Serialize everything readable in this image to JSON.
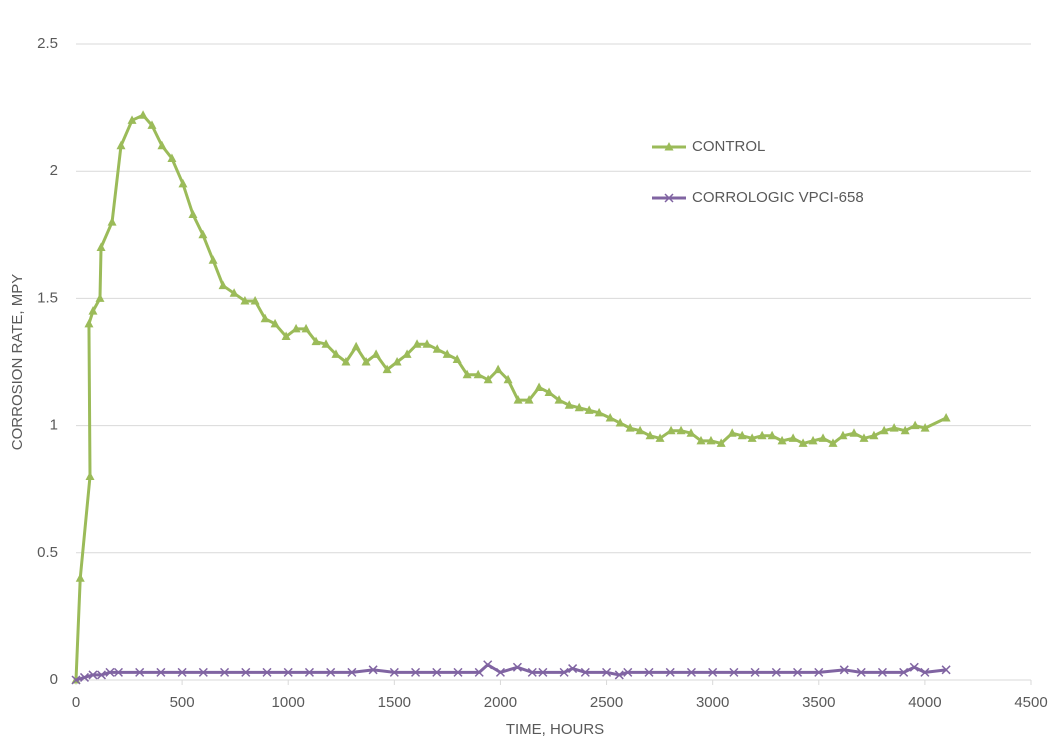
{
  "chart_data": {
    "type": "line",
    "xlabel": "TIME, HOURS",
    "ylabel": "CORROSION RATE, MPY",
    "xlim": [
      0,
      4500
    ],
    "xticks": [
      0,
      500,
      1000,
      1500,
      2000,
      2500,
      3000,
      3500,
      4000,
      4500
    ],
    "ylim": [
      0,
      2.5
    ],
    "yticks": [
      0,
      0.5,
      1,
      1.5,
      2,
      2.5
    ],
    "grid": true,
    "legend": "upper right",
    "series": [
      {
        "name": "CONTROL",
        "color": "#9bbb59",
        "marker": "triangle",
        "x": [
          0,
          20,
          66,
          61,
          80,
          113,
          118,
          170,
          212,
          264,
          316,
          358,
          405,
          452,
          504,
          551,
          598,
          646,
          693,
          745,
          796,
          844,
          891,
          938,
          990,
          1037,
          1084,
          1131,
          1178,
          1225,
          1272,
          1320,
          1367,
          1414,
          1466,
          1513,
          1560,
          1607,
          1654,
          1702,
          1749,
          1796,
          1843,
          1895,
          1942,
          1989,
          2036,
          2083,
          2135,
          2182,
          2229,
          2276,
          2324,
          2371,
          2418,
          2465,
          2517,
          2564,
          2611,
          2658,
          2705,
          2752,
          2804,
          2851,
          2898,
          2945,
          2992,
          3040,
          3092,
          3139,
          3186,
          3233,
          3280,
          3327,
          3379,
          3426,
          3473,
          3520,
          3567,
          3614,
          3666,
          3713,
          3760,
          3808,
          3855,
          3907,
          3954,
          4001,
          4100
        ],
        "values": [
          0,
          0.4,
          0.8,
          1.4,
          1.45,
          1.5,
          1.7,
          1.8,
          2.1,
          2.2,
          2.22,
          2.18,
          2.1,
          2.05,
          1.95,
          1.83,
          1.75,
          1.65,
          1.55,
          1.52,
          1.49,
          1.49,
          1.42,
          1.4,
          1.35,
          1.38,
          1.38,
          1.33,
          1.32,
          1.28,
          1.25,
          1.31,
          1.25,
          1.28,
          1.22,
          1.25,
          1.28,
          1.32,
          1.32,
          1.3,
          1.28,
          1.26,
          1.2,
          1.2,
          1.18,
          1.22,
          1.18,
          1.1,
          1.1,
          1.15,
          1.13,
          1.1,
          1.08,
          1.07,
          1.06,
          1.05,
          1.03,
          1.01,
          0.99,
          0.98,
          0.96,
          0.95,
          0.98,
          0.98,
          0.97,
          0.94,
          0.94,
          0.93,
          0.97,
          0.96,
          0.95,
          0.96,
          0.96,
          0.94,
          0.95,
          0.93,
          0.94,
          0.95,
          0.93,
          0.96,
          0.97,
          0.95,
          0.96,
          0.98,
          0.99,
          0.98,
          1.0,
          0.99,
          1.03
        ]
      },
      {
        "name": "CORROLOGIC VPCI-658",
        "color": "#8064a2",
        "marker": "x",
        "x": [
          0,
          40,
          80,
          120,
          160,
          200,
          300,
          400,
          500,
          600,
          700,
          800,
          900,
          1000,
          1100,
          1200,
          1300,
          1400,
          1500,
          1600,
          1700,
          1800,
          1900,
          1940,
          2000,
          2080,
          2150,
          2200,
          2300,
          2340,
          2400,
          2500,
          2560,
          2600,
          2700,
          2800,
          2900,
          3000,
          3100,
          3200,
          3300,
          3400,
          3500,
          3620,
          3700,
          3800,
          3900,
          3950,
          4000,
          4100
        ],
        "values": [
          0,
          0.01,
          0.02,
          0.02,
          0.03,
          0.03,
          0.03,
          0.03,
          0.03,
          0.03,
          0.03,
          0.03,
          0.03,
          0.03,
          0.03,
          0.03,
          0.03,
          0.04,
          0.03,
          0.03,
          0.03,
          0.03,
          0.03,
          0.06,
          0.03,
          0.05,
          0.03,
          0.03,
          0.03,
          0.045,
          0.03,
          0.03,
          0.02,
          0.03,
          0.03,
          0.03,
          0.03,
          0.03,
          0.03,
          0.03,
          0.03,
          0.03,
          0.03,
          0.04,
          0.03,
          0.03,
          0.03,
          0.05,
          0.03,
          0.04
        ]
      }
    ]
  }
}
